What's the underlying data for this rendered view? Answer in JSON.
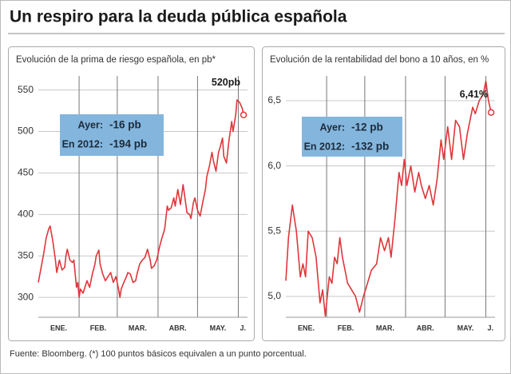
{
  "title": "Un respiro para la deuda pública española",
  "source": "Fuente: Bloomberg. (*) 100 puntos básicos equivalen a un punto porcentual.",
  "chart_data": [
    {
      "type": "line",
      "subtitle": "Evolución de la prima de riesgo española, en pb*",
      "color": "#e0363a",
      "grid": true,
      "xlim": [
        1,
        160
      ],
      "ylim": [
        276,
        567
      ],
      "xticks": [
        {
          "value": 1,
          "label": "ENE."
        },
        {
          "value": 32,
          "label": "FEB."
        },
        {
          "value": 61,
          "label": "MAR."
        },
        {
          "value": 92,
          "label": "ABR."
        },
        {
          "value": 122,
          "label": "MAY."
        },
        {
          "value": 153,
          "label": "J."
        }
      ],
      "yticks": [
        300,
        350,
        400,
        450,
        500,
        550
      ],
      "x": [
        1,
        3,
        5,
        7,
        9,
        10,
        12,
        14,
        15,
        17,
        19,
        21,
        22,
        23,
        25,
        27,
        28,
        30,
        31,
        32,
        33,
        35,
        37,
        38,
        40,
        42,
        44,
        45,
        47,
        48,
        50,
        52,
        54,
        56,
        58,
        60,
        62,
        63,
        64,
        66,
        68,
        69,
        71,
        73,
        75,
        76,
        78,
        80,
        82,
        84,
        86,
        87,
        89,
        91,
        93,
        95,
        97,
        99,
        100,
        102,
        104,
        105,
        107,
        109,
        111,
        112,
        114,
        116,
        117,
        119,
        120,
        122,
        124,
        126,
        128,
        129,
        131,
        133,
        134,
        136,
        138,
        139,
        141,
        142,
        144,
        146,
        148,
        149,
        151,
        152,
        154,
        156,
        157
      ],
      "values": [
        318,
        335,
        352,
        372,
        383,
        386,
        368,
        345,
        330,
        345,
        333,
        336,
        350,
        358,
        345,
        342,
        345,
        312,
        318,
        300,
        310,
        305,
        315,
        320,
        312,
        328,
        340,
        350,
        357,
        340,
        328,
        320,
        325,
        330,
        318,
        325,
        310,
        300,
        310,
        318,
        325,
        330,
        328,
        318,
        320,
        328,
        340,
        345,
        348,
        358,
        345,
        335,
        338,
        345,
        360,
        372,
        382,
        410,
        405,
        408,
        420,
        410,
        430,
        412,
        436,
        425,
        402,
        400,
        395,
        415,
        420,
        405,
        398,
        415,
        430,
        445,
        458,
        475,
        465,
        452,
        475,
        480,
        492,
        470,
        462,
        490,
        512,
        500,
        520,
        538,
        535,
        528,
        520
      ],
      "end_label": "520pb",
      "callout": [
        {
          "label": "Ayer:",
          "value": "-16 pb"
        },
        {
          "label": "En 2012:",
          "value": "-194 pb"
        }
      ]
    },
    {
      "type": "line",
      "subtitle": "Evolución de la rentabilidad del bono a 10 años, en %",
      "color": "#e0363a",
      "grid": true,
      "xlim": [
        1,
        160
      ],
      "ylim": [
        4.84,
        6.69
      ],
      "xticks": [
        {
          "value": 1,
          "label": "ENE."
        },
        {
          "value": 32,
          "label": "FEB."
        },
        {
          "value": 61,
          "label": "MAR."
        },
        {
          "value": 92,
          "label": "ABR."
        },
        {
          "value": 122,
          "label": "MAY."
        },
        {
          "value": 153,
          "label": "J."
        }
      ],
      "yticks": [
        {
          "value": 5,
          "label": "5,0"
        },
        {
          "value": 5.5,
          "label": "5,5"
        },
        {
          "value": 6,
          "label": "6,0"
        },
        {
          "value": 6.5,
          "label": "6,5"
        }
      ],
      "x": [
        1,
        3,
        6,
        9,
        12,
        14,
        16,
        18,
        21,
        24,
        27,
        29,
        31,
        34,
        36,
        38,
        40,
        42,
        44,
        48,
        51,
        54,
        57,
        60,
        63,
        66,
        70,
        73,
        76,
        79,
        81,
        84,
        87,
        89,
        91,
        93,
        96,
        99,
        102,
        104,
        107,
        110,
        113,
        116,
        119,
        121,
        124,
        127,
        130,
        133,
        136,
        139,
        143,
        145,
        148,
        151,
        153,
        155,
        157
      ],
      "values": [
        5.12,
        5.45,
        5.7,
        5.5,
        5.15,
        5.25,
        5.15,
        5.5,
        5.45,
        5.3,
        4.95,
        5.05,
        4.85,
        5.15,
        5.1,
        5.3,
        5.25,
        5.45,
        5.3,
        5.1,
        5.05,
        5.0,
        4.88,
        5.0,
        5.1,
        5.2,
        5.25,
        5.45,
        5.35,
        5.45,
        5.3,
        5.6,
        5.95,
        5.85,
        6.05,
        5.85,
        6.0,
        5.8,
        5.95,
        5.85,
        5.75,
        5.85,
        5.7,
        5.9,
        6.2,
        6.05,
        6.3,
        6.05,
        6.35,
        6.3,
        6.05,
        6.25,
        6.45,
        6.4,
        6.5,
        6.55,
        6.65,
        6.5,
        6.41
      ],
      "end_label": "6,41%",
      "callout": [
        {
          "label": "Ayer:",
          "value": "-12 pb"
        },
        {
          "label": "En 2012:",
          "value": "-132 pb"
        }
      ]
    }
  ]
}
